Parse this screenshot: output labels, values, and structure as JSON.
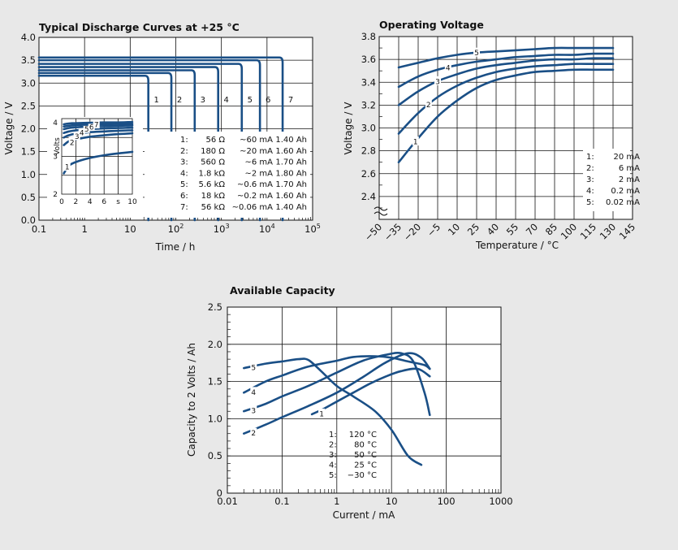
{
  "colors": {
    "background": "#e8e8e8",
    "curve": "#1a4f86",
    "plot_bg": "#ffffff"
  },
  "chart_data": [
    {
      "id": "discharge",
      "type": "line",
      "title": "Typical Discharge Curves at +25 °C",
      "xlabel": "Time / h",
      "ylabel": "Voltage / V",
      "x_scale": "log",
      "xlim": [
        0.1,
        100000
      ],
      "ylim": [
        0,
        4.0
      ],
      "x_ticks": [
        "0.1",
        "1",
        "10",
        "10",
        "10",
        "10",
        "10"
      ],
      "x_tick_exponents": [
        "",
        "",
        "",
        "2",
        "3",
        "4",
        "5"
      ],
      "y_ticks": [
        "0.0",
        "0.5",
        "1.0",
        "1.5",
        "2.0",
        "2.5",
        "3.0",
        "3.5",
        "4.0"
      ],
      "grid": true,
      "series": [
        {
          "name": "1",
          "voltage": 3.16,
          "end_h": 25
        },
        {
          "name": "2",
          "voltage": 3.22,
          "end_h": 80
        },
        {
          "name": "3",
          "voltage": 3.28,
          "end_h": 260
        },
        {
          "name": "4",
          "voltage": 3.35,
          "end_h": 850
        },
        {
          "name": "5",
          "voltage": 3.42,
          "end_h": 2800
        },
        {
          "name": "6",
          "voltage": 3.5,
          "end_h": 7000
        },
        {
          "name": "7",
          "voltage": 3.56,
          "end_h": 22000
        }
      ],
      "legend_rows": [
        [
          "1:",
          "56 Ω",
          "~60 mA",
          "1.40 Ah"
        ],
        [
          "2:",
          "180 Ω",
          "~20 mA",
          "1.60 Ah"
        ],
        [
          "3:",
          "560 Ω",
          "~6 mA",
          "1.70 Ah"
        ],
        [
          "4:",
          "1.8 kΩ",
          "~2 mA",
          "1.80 Ah"
        ],
        [
          "5:",
          "5.6 kΩ",
          "~0.6 mA",
          "1.70 Ah"
        ],
        [
          "6:",
          "18 kΩ",
          "~0.2 mA",
          "1.60 Ah"
        ],
        [
          "7:",
          "56 kΩ",
          "~0.06 mA",
          "1.40 Ah"
        ]
      ],
      "inset": {
        "ylabel": "Volts",
        "y_ticks": [
          "4",
          "3",
          "2"
        ],
        "x_ticks": [
          "0",
          "2",
          "4",
          "6",
          "s",
          "10"
        ],
        "ylim": [
          2,
          4
        ],
        "xlim": [
          0,
          10
        ],
        "series": [
          {
            "name": "1",
            "x": [
              0.3,
              1,
              2,
              4,
              6,
              8,
              10
            ],
            "y": [
              2.55,
              2.75,
              2.85,
              2.96,
              3.03,
              3.08,
              3.12
            ]
          },
          {
            "name": "2",
            "x": [
              0.3,
              1,
              2,
              4,
              6,
              8,
              10
            ],
            "y": [
              3.3,
              3.4,
              3.45,
              3.52,
              3.56,
              3.59,
              3.61
            ]
          },
          {
            "name": "3",
            "x": [
              0.3,
              1,
              2,
              4,
              6,
              8,
              10
            ],
            "y": [
              3.5,
              3.56,
              3.6,
              3.64,
              3.66,
              3.68,
              3.69
            ]
          },
          {
            "name": "4",
            "x": [
              0.3,
              1,
              2,
              4,
              6,
              8,
              10
            ],
            "y": [
              3.62,
              3.66,
              3.69,
              3.72,
              3.74,
              3.75,
              3.76
            ]
          },
          {
            "name": "5",
            "x": [
              0.3,
              1,
              2,
              4,
              6,
              8,
              10
            ],
            "y": [
              3.72,
              3.75,
              3.77,
              3.79,
              3.8,
              3.81,
              3.82
            ]
          },
          {
            "name": "6",
            "x": [
              0.3,
              1,
              2,
              4,
              6,
              8,
              10
            ],
            "y": [
              3.79,
              3.81,
              3.83,
              3.84,
              3.85,
              3.86,
              3.86
            ]
          },
          {
            "name": "7",
            "x": [
              0.3,
              1,
              2,
              4,
              6,
              8,
              10
            ],
            "y": [
              3.85,
              3.87,
              3.88,
              3.89,
              3.9,
              3.9,
              3.91
            ]
          }
        ]
      }
    },
    {
      "id": "operating",
      "type": "line",
      "title": "Operating Voltage",
      "xlabel": "Temperature / °C",
      "ylabel": "Voltage / V",
      "xlim": [
        -50,
        145
      ],
      "ylim": [
        2.2,
        3.8
      ],
      "x_ticks": [
        "−50",
        "−35",
        "−20",
        "−5",
        "10",
        "25",
        "40",
        "55",
        "70",
        "85",
        "100",
        "115",
        "130",
        "145"
      ],
      "x_tick_values": [
        -50,
        -35,
        -20,
        -5,
        10,
        25,
        40,
        55,
        70,
        85,
        100,
        115,
        130,
        145
      ],
      "y_ticks": [
        "2.4",
        "2.6",
        "2.8",
        "3.0",
        "3.2",
        "3.4",
        "3.6",
        "3.8"
      ],
      "y_tick_values": [
        2.4,
        2.6,
        2.8,
        3.0,
        3.2,
        3.4,
        3.6,
        3.8
      ],
      "grid": true,
      "series": [
        {
          "name": "1",
          "x": [
            -35,
            -20,
            -5,
            10,
            25,
            40,
            55,
            70,
            85,
            100,
            115,
            130
          ],
          "y": [
            2.7,
            2.91,
            3.1,
            3.24,
            3.35,
            3.42,
            3.46,
            3.49,
            3.5,
            3.51,
            3.51,
            3.51
          ]
        },
        {
          "name": "2",
          "x": [
            -35,
            -20,
            -5,
            10,
            25,
            40,
            55,
            70,
            85,
            100,
            115,
            130
          ],
          "y": [
            2.95,
            3.13,
            3.27,
            3.37,
            3.44,
            3.49,
            3.52,
            3.54,
            3.55,
            3.56,
            3.56,
            3.56
          ]
        },
        {
          "name": "3",
          "x": [
            -35,
            -20,
            -5,
            10,
            25,
            40,
            55,
            70,
            85,
            100,
            115,
            130
          ],
          "y": [
            3.2,
            3.32,
            3.41,
            3.47,
            3.52,
            3.55,
            3.57,
            3.59,
            3.6,
            3.6,
            3.61,
            3.61
          ]
        },
        {
          "name": "4",
          "x": [
            -35,
            -20,
            -5,
            10,
            25,
            40,
            55,
            70,
            85,
            100,
            115,
            130
          ],
          "y": [
            3.36,
            3.45,
            3.51,
            3.55,
            3.58,
            3.6,
            3.62,
            3.63,
            3.64,
            3.64,
            3.65,
            3.65
          ]
        },
        {
          "name": "5",
          "x": [
            -35,
            -20,
            -5,
            10,
            25,
            40,
            55,
            70,
            85,
            100,
            115,
            130
          ],
          "y": [
            3.53,
            3.57,
            3.61,
            3.64,
            3.66,
            3.67,
            3.68,
            3.69,
            3.7,
            3.7,
            3.7,
            3.7
          ]
        }
      ],
      "legend_rows": [
        [
          "1:",
          "20 mA"
        ],
        [
          "2:",
          "6 mA"
        ],
        [
          "3:",
          "2 mA"
        ],
        [
          "4:",
          "0.2 mA"
        ],
        [
          "5:",
          "0.02 mA"
        ]
      ]
    },
    {
      "id": "capacity",
      "type": "line",
      "title": "Available Capacity",
      "xlabel": "Current / mA",
      "ylabel": "Capacity to 2 Volts / Ah",
      "x_scale": "log",
      "xlim": [
        0.01,
        1000
      ],
      "ylim": [
        0,
        2.5
      ],
      "x_ticks": [
        "0.01",
        "0.1",
        "1",
        "10",
        "100",
        "1000"
      ],
      "y_ticks": [
        "0",
        "0.5",
        "1.0",
        "1.5",
        "2.0",
        "2.5"
      ],
      "grid": true,
      "series": [
        {
          "name": "1",
          "x": [
            0.35,
            0.6,
            1,
            2,
            4,
            8,
            15,
            30,
            50
          ],
          "y": [
            1.06,
            1.14,
            1.23,
            1.35,
            1.47,
            1.57,
            1.64,
            1.67,
            1.57
          ]
        },
        {
          "name": "2",
          "x": [
            0.02,
            0.05,
            0.1,
            0.3,
            1,
            3,
            8,
            20,
            35,
            50
          ],
          "y": [
            0.8,
            0.92,
            1.02,
            1.17,
            1.35,
            1.56,
            1.76,
            1.88,
            1.82,
            1.67
          ]
        },
        {
          "name": "3",
          "x": [
            0.02,
            0.05,
            0.1,
            0.3,
            1,
            3,
            8,
            15,
            25,
            40,
            50
          ],
          "y": [
            1.1,
            1.2,
            1.3,
            1.44,
            1.62,
            1.78,
            1.86,
            1.88,
            1.77,
            1.35,
            1.05
          ]
        },
        {
          "name": "4",
          "x": [
            0.02,
            0.05,
            0.1,
            0.3,
            1,
            2,
            5,
            10,
            20,
            40,
            50
          ],
          "y": [
            1.35,
            1.5,
            1.58,
            1.7,
            1.78,
            1.83,
            1.84,
            1.82,
            1.77,
            1.72,
            1.67
          ]
        },
        {
          "name": "5",
          "x": [
            0.02,
            0.05,
            0.1,
            0.2,
            0.3,
            0.5,
            1,
            2,
            5,
            10,
            20,
            35
          ],
          "y": [
            1.68,
            1.74,
            1.77,
            1.8,
            1.79,
            1.65,
            1.44,
            1.3,
            1.1,
            0.85,
            0.5,
            0.38
          ]
        }
      ],
      "legend_rows": [
        [
          "1:",
          "120 °C"
        ],
        [
          "2:",
          "80 °C"
        ],
        [
          "3:",
          "50 °C"
        ],
        [
          "4:",
          "25 °C"
        ],
        [
          "5:",
          "−30 °C"
        ]
      ]
    }
  ]
}
